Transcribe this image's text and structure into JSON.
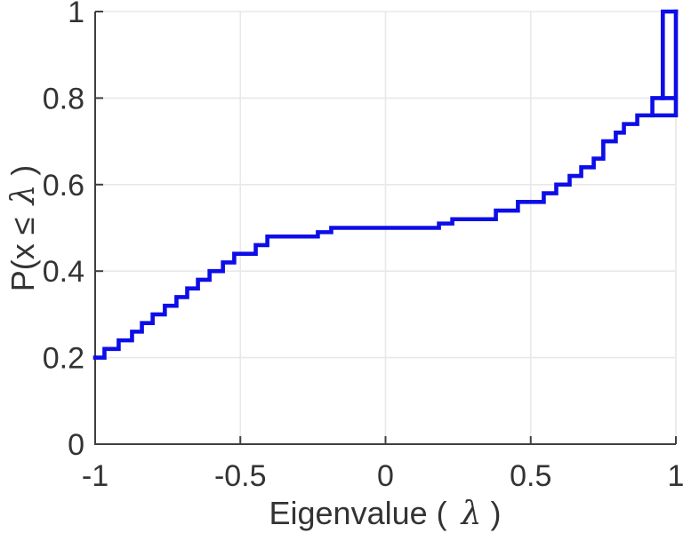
{
  "chart_data": {
    "type": "line",
    "subtype": "ecdf_step",
    "title": "",
    "xlabel": "Eigenvalue ( λ)",
    "ylabel": "P(x ≤ λ)",
    "xlabel_parts": {
      "pre": "Eigenvalue ( ",
      "lambda": "λ",
      "post": ")"
    },
    "ylabel_parts": {
      "pre": "P(x ≤ ",
      "lambda": "λ",
      "post": ")"
    },
    "xlim": [
      -1,
      1
    ],
    "ylim": [
      0,
      1
    ],
    "grid": true,
    "legend": null,
    "line_color": "#0d0de8",
    "line_width": 4.6,
    "x_ticks": [
      {
        "value": -1,
        "label": "-1"
      },
      {
        "value": -0.5,
        "label": "-0.5"
      },
      {
        "value": 0,
        "label": "0"
      },
      {
        "value": 0.5,
        "label": "0.5"
      },
      {
        "value": 1,
        "label": "1"
      }
    ],
    "y_ticks": [
      {
        "value": 0,
        "label": "0"
      },
      {
        "value": 0.2,
        "label": "0.2"
      },
      {
        "value": 0.4,
        "label": "0.4"
      },
      {
        "value": 0.6,
        "label": "0.6"
      },
      {
        "value": 0.8,
        "label": "0.8"
      },
      {
        "value": 1,
        "label": "1"
      }
    ],
    "x_gridlines": [
      -0.5,
      0,
      0.5,
      1
    ],
    "y_gridlines": [
      0.2,
      0.4,
      0.6,
      0.8,
      1
    ],
    "start_point": [
      -1.0,
      0.2
    ],
    "steps": [
      [
        -0.968,
        0.22
      ],
      [
        -0.919,
        0.24
      ],
      [
        -0.873,
        0.26
      ],
      [
        -0.839,
        0.28
      ],
      [
        -0.802,
        0.3
      ],
      [
        -0.76,
        0.32
      ],
      [
        -0.72,
        0.34
      ],
      [
        -0.683,
        0.36
      ],
      [
        -0.646,
        0.38
      ],
      [
        -0.606,
        0.4
      ],
      [
        -0.56,
        0.42
      ],
      [
        -0.521,
        0.44
      ],
      [
        -0.447,
        0.46
      ],
      [
        -0.407,
        0.48
      ],
      [
        -0.233,
        0.49
      ],
      [
        -0.187,
        0.5
      ],
      [
        0.184,
        0.51
      ],
      [
        0.23,
        0.52
      ],
      [
        0.38,
        0.54
      ],
      [
        0.456,
        0.56
      ],
      [
        0.545,
        0.58
      ],
      [
        0.588,
        0.6
      ],
      [
        0.634,
        0.62
      ],
      [
        0.674,
        0.64
      ],
      [
        0.717,
        0.66
      ],
      [
        0.75,
        0.7
      ],
      [
        0.793,
        0.72
      ],
      [
        0.821,
        0.74
      ],
      [
        0.867,
        0.76
      ],
      [
        0.919,
        0.8
      ],
      [
        0.955,
        1.0
      ]
    ],
    "end_flat_to": 1.0,
    "extra_segments": [
      [
        [
          0.919,
          0.76
        ],
        [
          1.0,
          0.76
        ]
      ],
      [
        [
          0.955,
          0.8
        ],
        [
          1.0,
          0.8
        ]
      ],
      [
        [
          1.0,
          0.76
        ],
        [
          1.0,
          1.0
        ]
      ]
    ]
  }
}
